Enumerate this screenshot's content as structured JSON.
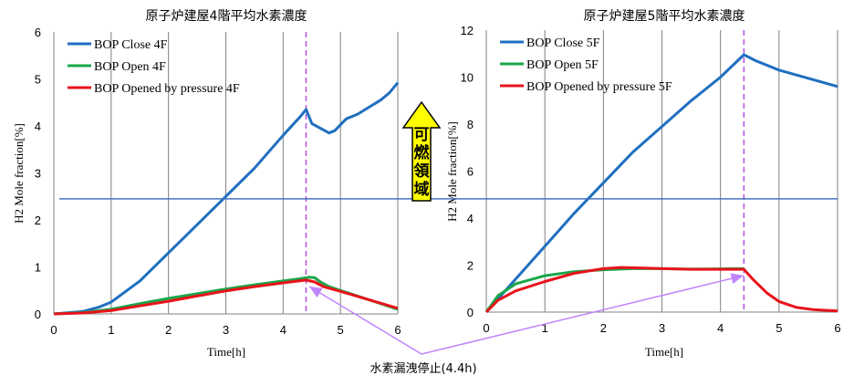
{
  "chart_data": [
    {
      "type": "line",
      "title": "原子炉建屋4階平均水素濃度",
      "xlabel": "Time[h]",
      "ylabel": "H2 Mole fraction[%]",
      "xlim": [
        0,
        6
      ],
      "ylim": [
        0,
        6
      ],
      "xticks": [
        "0",
        "1",
        "2",
        "3",
        "4",
        "5",
        "6"
      ],
      "yticks": [
        "0",
        "1",
        "2",
        "3",
        "4",
        "5",
        "6"
      ],
      "grid": "vertical",
      "legend": "top-left",
      "threshold": 2.45,
      "stop_time": 4.4,
      "series": [
        {
          "name": "BOP Close 4F",
          "color": "#1f6fc0",
          "x": [
            0,
            0.5,
            0.8,
            1.0,
            1.5,
            2.0,
            2.5,
            3.0,
            3.5,
            4.0,
            4.3,
            4.4,
            4.5,
            4.65,
            4.8,
            4.9,
            5.1,
            5.3,
            5.5,
            5.7,
            5.85,
            6.0
          ],
          "y": [
            0,
            0.05,
            0.15,
            0.25,
            0.7,
            1.3,
            1.9,
            2.5,
            3.1,
            3.8,
            4.2,
            4.35,
            4.05,
            3.95,
            3.85,
            3.9,
            4.15,
            4.25,
            4.4,
            4.55,
            4.7,
            4.92
          ]
        },
        {
          "name": "BOP Open 4F",
          "color": "#1aa64a",
          "x": [
            0,
            0.5,
            1.0,
            1.5,
            2.0,
            2.5,
            3.0,
            3.5,
            4.0,
            4.3,
            4.45,
            4.55,
            4.65,
            4.8,
            5.0,
            5.5,
            6.0
          ],
          "y": [
            0,
            0.03,
            0.1,
            0.22,
            0.33,
            0.43,
            0.53,
            0.62,
            0.7,
            0.75,
            0.78,
            0.77,
            0.68,
            0.58,
            0.5,
            0.3,
            0.1
          ]
        },
        {
          "name": "BOP Opened by pressure 4F",
          "color": "#e8131b",
          "x": [
            0,
            0.5,
            1.0,
            1.5,
            2.0,
            2.5,
            3.0,
            3.5,
            4.0,
            4.4,
            4.55,
            4.7,
            5.0,
            5.5,
            6.0
          ],
          "y": [
            0,
            0.02,
            0.07,
            0.17,
            0.27,
            0.38,
            0.49,
            0.58,
            0.66,
            0.72,
            0.68,
            0.58,
            0.48,
            0.3,
            0.12
          ]
        }
      ]
    },
    {
      "type": "line",
      "title": "原子炉建屋5階平均水素濃度",
      "xlabel": "Time[h]",
      "ylabel": "H2 Mole fraction[%]",
      "xlim": [
        0,
        6
      ],
      "ylim": [
        0,
        12
      ],
      "xticks": [
        "0",
        "1",
        "2",
        "3",
        "4",
        "5",
        "6"
      ],
      "yticks": [
        "0",
        "2",
        "4",
        "6",
        "8",
        "10",
        "12"
      ],
      "grid": "vertical",
      "legend": "top-left",
      "threshold": 4.85,
      "stop_time": 4.4,
      "series": [
        {
          "name": "BOP Close 5F",
          "color": "#1f6fc0",
          "x": [
            0,
            0.5,
            1.0,
            1.5,
            2.0,
            2.5,
            3.0,
            3.5,
            4.0,
            4.4,
            4.6,
            5.0,
            5.5,
            6.0
          ],
          "y": [
            0,
            1.4,
            2.8,
            4.2,
            5.5,
            6.8,
            7.9,
            9.0,
            10.0,
            10.95,
            10.7,
            10.3,
            9.95,
            9.6
          ]
        },
        {
          "name": "BOP Open 5F",
          "color": "#1aa64a",
          "x": [
            0,
            0.2,
            0.5,
            1.0,
            1.5,
            2.0,
            2.5,
            3.0,
            3.5,
            4.0,
            4.4
          ],
          "y": [
            0,
            0.7,
            1.2,
            1.55,
            1.72,
            1.8,
            1.85,
            1.85,
            1.83,
            1.84,
            1.85
          ]
        },
        {
          "name": "BOP Opened by pressure 5F",
          "color": "#e8131b",
          "x": [
            0,
            0.2,
            0.5,
            1.0,
            1.5,
            2.0,
            2.3,
            2.7,
            3.0,
            3.5,
            4.0,
            4.4,
            4.55,
            4.8,
            5.0,
            5.3,
            5.6,
            6.0
          ],
          "y": [
            0,
            0.5,
            0.9,
            1.3,
            1.65,
            1.85,
            1.9,
            1.87,
            1.85,
            1.82,
            1.82,
            1.82,
            1.4,
            0.8,
            0.45,
            0.2,
            0.1,
            0.05
          ]
        }
      ]
    }
  ],
  "flammable_label": [
    "可",
    "燃",
    "領",
    "域"
  ],
  "annotation": "水素漏洩停止(4.4h)"
}
